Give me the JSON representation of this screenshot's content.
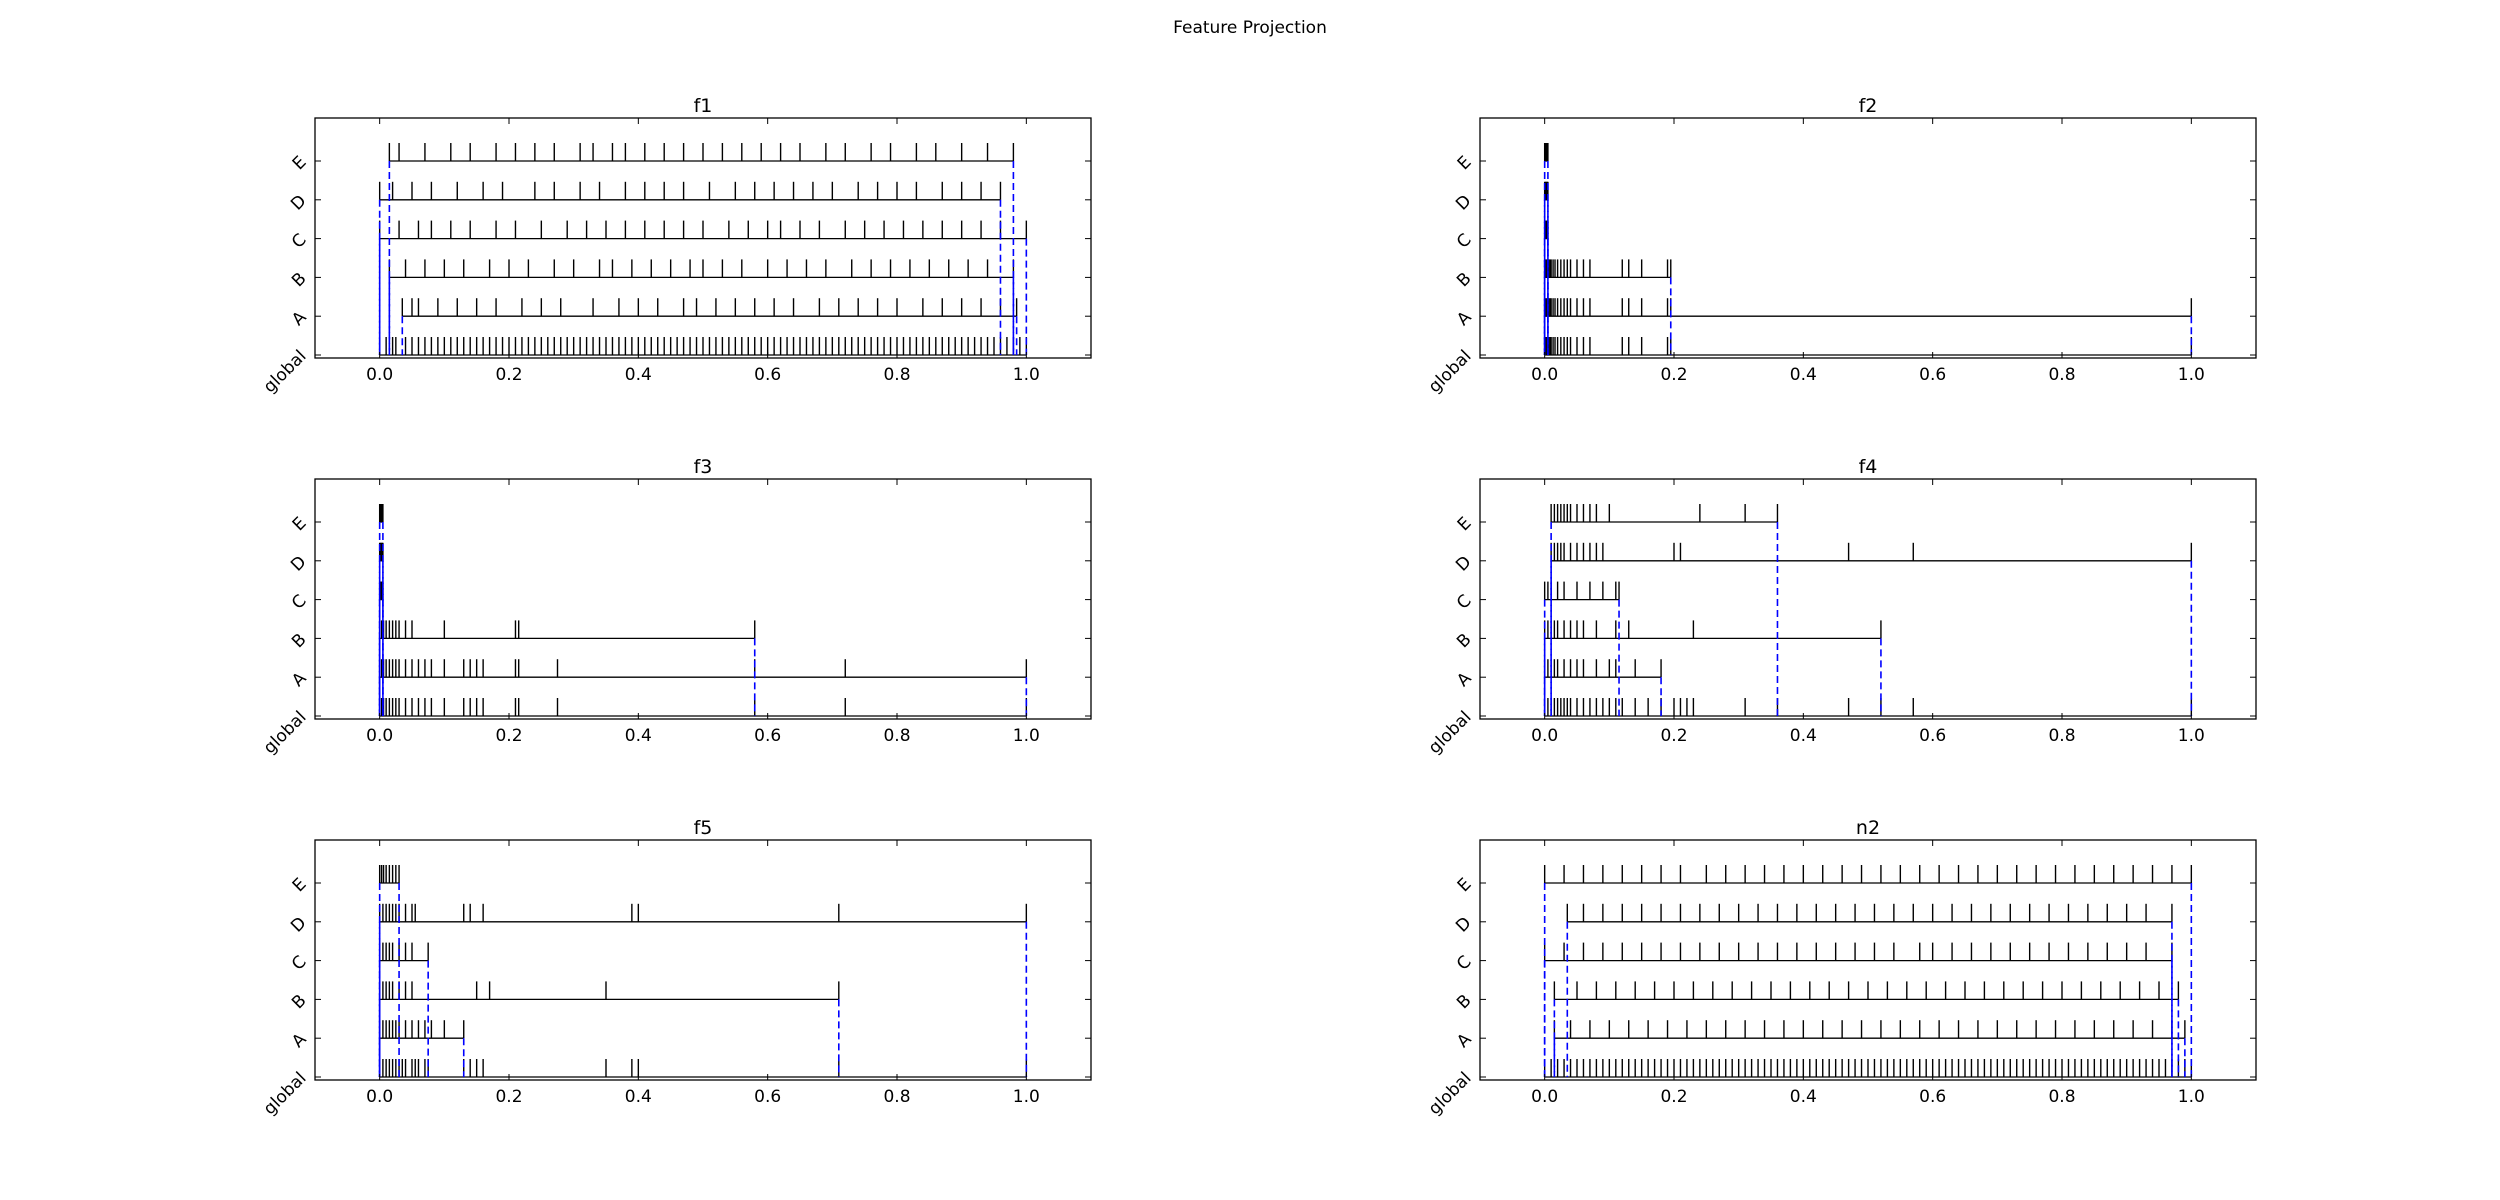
{
  "figure_title": "Feature Projection",
  "chart_data": [
    {
      "type": "event-strip",
      "title": "f1",
      "xlim": [
        -0.1,
        1.1
      ],
      "xticks": [
        "0.0",
        "0.2",
        "0.4",
        "0.6",
        "0.8",
        "1.0"
      ],
      "rows": [
        "global",
        "A",
        "B",
        "C",
        "D",
        "E"
      ],
      "grid": false,
      "ranges": {
        "global": [
          0.0,
          1.0
        ],
        "A": [
          0.035,
          0.985
        ],
        "B": [
          0.015,
          0.98
        ],
        "C": [
          0.0,
          1.0
        ],
        "D": [
          0.0,
          0.96
        ],
        "E": [
          0.015,
          0.98
        ]
      },
      "events": {
        "global": [
          0.0,
          0.01,
          0.02,
          0.025,
          0.04,
          0.05,
          0.06,
          0.07,
          0.08,
          0.09,
          0.1,
          0.11,
          0.12,
          0.13,
          0.14,
          0.15,
          0.16,
          0.17,
          0.18,
          0.19,
          0.2,
          0.21,
          0.22,
          0.23,
          0.24,
          0.25,
          0.26,
          0.27,
          0.28,
          0.29,
          0.3,
          0.31,
          0.32,
          0.33,
          0.34,
          0.35,
          0.36,
          0.37,
          0.38,
          0.39,
          0.4,
          0.41,
          0.42,
          0.43,
          0.44,
          0.45,
          0.46,
          0.47,
          0.48,
          0.49,
          0.5,
          0.51,
          0.52,
          0.53,
          0.54,
          0.55,
          0.56,
          0.57,
          0.58,
          0.59,
          0.6,
          0.61,
          0.62,
          0.63,
          0.64,
          0.65,
          0.66,
          0.67,
          0.68,
          0.69,
          0.7,
          0.71,
          0.72,
          0.73,
          0.74,
          0.75,
          0.76,
          0.77,
          0.78,
          0.79,
          0.8,
          0.81,
          0.82,
          0.83,
          0.84,
          0.85,
          0.86,
          0.87,
          0.88,
          0.89,
          0.9,
          0.91,
          0.92,
          0.93,
          0.94,
          0.95,
          0.96,
          0.97,
          0.98,
          0.99,
          1.0
        ],
        "A": [
          0.035,
          0.05,
          0.06,
          0.09,
          0.12,
          0.15,
          0.18,
          0.22,
          0.25,
          0.28,
          0.33,
          0.37,
          0.4,
          0.43,
          0.47,
          0.49,
          0.52,
          0.55,
          0.58,
          0.61,
          0.64,
          0.68,
          0.71,
          0.74,
          0.77,
          0.8,
          0.84,
          0.87,
          0.9,
          0.93,
          0.96,
          0.985
        ],
        "B": [
          0.015,
          0.04,
          0.07,
          0.1,
          0.13,
          0.17,
          0.2,
          0.23,
          0.27,
          0.3,
          0.34,
          0.36,
          0.39,
          0.42,
          0.45,
          0.48,
          0.5,
          0.53,
          0.56,
          0.6,
          0.63,
          0.66,
          0.69,
          0.73,
          0.76,
          0.79,
          0.82,
          0.85,
          0.88,
          0.91,
          0.94,
          0.98
        ],
        "C": [
          0.0,
          0.03,
          0.06,
          0.08,
          0.11,
          0.14,
          0.18,
          0.21,
          0.25,
          0.29,
          0.32,
          0.35,
          0.38,
          0.41,
          0.44,
          0.47,
          0.5,
          0.54,
          0.57,
          0.6,
          0.62,
          0.65,
          0.68,
          0.72,
          0.75,
          0.78,
          0.81,
          0.84,
          0.87,
          0.9,
          0.93,
          0.96,
          1.0
        ],
        "D": [
          0.0,
          0.02,
          0.05,
          0.08,
          0.12,
          0.16,
          0.19,
          0.24,
          0.27,
          0.31,
          0.34,
          0.38,
          0.41,
          0.44,
          0.47,
          0.51,
          0.55,
          0.58,
          0.61,
          0.64,
          0.67,
          0.7,
          0.74,
          0.77,
          0.8,
          0.83,
          0.87,
          0.9,
          0.93,
          0.96
        ],
        "E": [
          0.015,
          0.03,
          0.07,
          0.11,
          0.14,
          0.18,
          0.21,
          0.24,
          0.27,
          0.31,
          0.33,
          0.36,
          0.38,
          0.41,
          0.44,
          0.47,
          0.5,
          0.53,
          0.56,
          0.59,
          0.62,
          0.65,
          0.69,
          0.72,
          0.76,
          0.79,
          0.83,
          0.86,
          0.9,
          0.94,
          0.98
        ]
      }
    },
    {
      "type": "event-strip",
      "title": "f2",
      "xlim": [
        -0.1,
        1.1
      ],
      "xticks": [
        "0.0",
        "0.2",
        "0.4",
        "0.6",
        "0.8",
        "1.0"
      ],
      "rows": [
        "global",
        "A",
        "B",
        "C",
        "D",
        "E"
      ],
      "grid": false,
      "ranges": {
        "global": [
          0.0,
          1.0
        ],
        "A": [
          0.0,
          1.0
        ],
        "B": [
          0.0,
          0.195
        ],
        "C": [
          0.0,
          0.005
        ],
        "D": [
          0.0,
          0.005
        ],
        "E": [
          0.0,
          0.005
        ]
      },
      "events": {
        "global": [
          0.0,
          0.002,
          0.004,
          0.006,
          0.008,
          0.01,
          0.013,
          0.016,
          0.02,
          0.025,
          0.03,
          0.035,
          0.04,
          0.05,
          0.06,
          0.07,
          0.12,
          0.13,
          0.15,
          0.19,
          0.195,
          1.0
        ],
        "A": [
          0.0,
          0.002,
          0.004,
          0.006,
          0.008,
          0.01,
          0.013,
          0.016,
          0.02,
          0.025,
          0.03,
          0.035,
          0.04,
          0.05,
          0.06,
          0.07,
          0.12,
          0.13,
          0.15,
          0.19,
          0.195,
          1.0
        ],
        "B": [
          0.0,
          0.002,
          0.004,
          0.006,
          0.008,
          0.01,
          0.013,
          0.016,
          0.02,
          0.025,
          0.03,
          0.035,
          0.04,
          0.05,
          0.06,
          0.07,
          0.12,
          0.13,
          0.15,
          0.19,
          0.195
        ],
        "C": [
          0.0,
          0.001,
          0.002,
          0.003,
          0.004,
          0.005
        ],
        "D": [
          0.0,
          0.001,
          0.002,
          0.003,
          0.004,
          0.005
        ],
        "E": [
          0.0,
          0.001,
          0.002,
          0.003,
          0.004,
          0.005
        ]
      }
    },
    {
      "type": "event-strip",
      "title": "f3",
      "xlim": [
        -0.1,
        1.1
      ],
      "xticks": [
        "0.0",
        "0.2",
        "0.4",
        "0.6",
        "0.8",
        "1.0"
      ],
      "rows": [
        "global",
        "A",
        "B",
        "C",
        "D",
        "E"
      ],
      "grid": false,
      "ranges": {
        "global": [
          0.0,
          1.0
        ],
        "A": [
          0.0,
          1.0
        ],
        "B": [
          0.0,
          0.58
        ],
        "C": [
          0.0,
          0.005
        ],
        "D": [
          0.0,
          0.005
        ],
        "E": [
          0.0,
          0.005
        ]
      },
      "events": {
        "global": [
          0.0,
          0.003,
          0.006,
          0.01,
          0.015,
          0.02,
          0.025,
          0.03,
          0.04,
          0.05,
          0.06,
          0.07,
          0.08,
          0.1,
          0.13,
          0.14,
          0.15,
          0.16,
          0.21,
          0.215,
          0.275,
          0.58,
          0.72,
          1.0
        ],
        "A": [
          0.0,
          0.003,
          0.006,
          0.01,
          0.015,
          0.02,
          0.025,
          0.03,
          0.04,
          0.05,
          0.06,
          0.07,
          0.08,
          0.1,
          0.13,
          0.14,
          0.15,
          0.16,
          0.21,
          0.215,
          0.275,
          0.58,
          0.72,
          1.0
        ],
        "B": [
          0.0,
          0.003,
          0.006,
          0.01,
          0.015,
          0.02,
          0.025,
          0.03,
          0.04,
          0.05,
          0.1,
          0.21,
          0.215,
          0.58
        ],
        "C": [
          0.0,
          0.001,
          0.002,
          0.003,
          0.004,
          0.005
        ],
        "D": [
          0.0,
          0.001,
          0.002,
          0.003,
          0.004,
          0.005
        ],
        "E": [
          0.0,
          0.001,
          0.002,
          0.003,
          0.004,
          0.005
        ]
      }
    },
    {
      "type": "event-strip",
      "title": "f4",
      "xlim": [
        -0.1,
        1.1
      ],
      "xticks": [
        "0.0",
        "0.2",
        "0.4",
        "0.6",
        "0.8",
        "1.0"
      ],
      "rows": [
        "global",
        "A",
        "B",
        "C",
        "D",
        "E"
      ],
      "grid": false,
      "ranges": {
        "global": [
          0.0,
          1.0
        ],
        "A": [
          0.0,
          0.18
        ],
        "B": [
          0.0,
          0.52
        ],
        "C": [
          0.0,
          0.115
        ],
        "D": [
          0.01,
          1.0
        ],
        "E": [
          0.01,
          0.36
        ]
      },
      "events": {
        "global": [
          0.0,
          0.005,
          0.01,
          0.015,
          0.02,
          0.025,
          0.03,
          0.035,
          0.04,
          0.05,
          0.06,
          0.07,
          0.08,
          0.09,
          0.1,
          0.11,
          0.12,
          0.14,
          0.16,
          0.18,
          0.2,
          0.21,
          0.22,
          0.23,
          0.31,
          0.36,
          0.47,
          0.52,
          0.57,
          1.0
        ],
        "A": [
          0.0,
          0.005,
          0.01,
          0.015,
          0.02,
          0.03,
          0.04,
          0.05,
          0.06,
          0.08,
          0.1,
          0.11,
          0.14,
          0.18
        ],
        "B": [
          0.0,
          0.005,
          0.01,
          0.015,
          0.02,
          0.03,
          0.04,
          0.05,
          0.06,
          0.08,
          0.11,
          0.13,
          0.23,
          0.52
        ],
        "C": [
          0.0,
          0.005,
          0.01,
          0.02,
          0.03,
          0.05,
          0.07,
          0.09,
          0.11,
          0.115
        ],
        "D": [
          0.01,
          0.015,
          0.02,
          0.025,
          0.03,
          0.04,
          0.05,
          0.06,
          0.07,
          0.08,
          0.09,
          0.2,
          0.21,
          0.47,
          0.57,
          1.0
        ],
        "E": [
          0.01,
          0.015,
          0.02,
          0.025,
          0.03,
          0.035,
          0.04,
          0.05,
          0.06,
          0.07,
          0.08,
          0.1,
          0.24,
          0.31,
          0.36
        ]
      }
    },
    {
      "type": "event-strip",
      "title": "f5",
      "xlim": [
        -0.1,
        1.1
      ],
      "xticks": [
        "0.0",
        "0.2",
        "0.4",
        "0.6",
        "0.8",
        "1.0"
      ],
      "rows": [
        "global",
        "A",
        "B",
        "C",
        "D",
        "E"
      ],
      "grid": false,
      "ranges": {
        "global": [
          0.0,
          1.0
        ],
        "A": [
          0.0,
          0.13
        ],
        "B": [
          0.0,
          0.71
        ],
        "C": [
          0.0,
          0.075
        ],
        "D": [
          0.0,
          1.0
        ],
        "E": [
          0.0,
          0.03
        ]
      },
      "events": {
        "global": [
          0.0,
          0.005,
          0.01,
          0.015,
          0.02,
          0.025,
          0.03,
          0.035,
          0.04,
          0.05,
          0.055,
          0.06,
          0.07,
          0.075,
          0.13,
          0.14,
          0.15,
          0.16,
          0.35,
          0.39,
          0.4,
          0.71,
          1.0
        ],
        "A": [
          0.0,
          0.005,
          0.01,
          0.015,
          0.02,
          0.025,
          0.03,
          0.04,
          0.05,
          0.06,
          0.07,
          0.08,
          0.1,
          0.13
        ],
        "B": [
          0.0,
          0.005,
          0.01,
          0.015,
          0.02,
          0.03,
          0.04,
          0.05,
          0.15,
          0.17,
          0.35,
          0.71
        ],
        "C": [
          0.0,
          0.005,
          0.01,
          0.015,
          0.02,
          0.03,
          0.04,
          0.05,
          0.075
        ],
        "D": [
          0.0,
          0.005,
          0.01,
          0.015,
          0.02,
          0.025,
          0.03,
          0.04,
          0.05,
          0.055,
          0.13,
          0.14,
          0.16,
          0.39,
          0.4,
          0.71,
          1.0
        ],
        "E": [
          0.0,
          0.003,
          0.006,
          0.01,
          0.015,
          0.02,
          0.025,
          0.03
        ]
      }
    },
    {
      "type": "event-strip",
      "title": "n2",
      "xlim": [
        -0.1,
        1.1
      ],
      "xticks": [
        "0.0",
        "0.2",
        "0.4",
        "0.6",
        "0.8",
        "1.0"
      ],
      "rows": [
        "global",
        "A",
        "B",
        "C",
        "D",
        "E"
      ],
      "grid": false,
      "ranges": {
        "global": [
          0.0,
          1.0
        ],
        "A": [
          0.015,
          0.99
        ],
        "B": [
          0.015,
          0.98
        ],
        "C": [
          0.0,
          0.97
        ],
        "D": [
          0.035,
          0.97
        ],
        "E": [
          0.0,
          1.0
        ]
      },
      "events": {
        "global": [
          0.0,
          0.01,
          0.02,
          0.03,
          0.04,
          0.05,
          0.06,
          0.07,
          0.08,
          0.09,
          0.1,
          0.11,
          0.12,
          0.13,
          0.14,
          0.15,
          0.16,
          0.17,
          0.18,
          0.19,
          0.2,
          0.21,
          0.22,
          0.23,
          0.24,
          0.25,
          0.26,
          0.27,
          0.28,
          0.29,
          0.3,
          0.31,
          0.32,
          0.33,
          0.34,
          0.35,
          0.36,
          0.37,
          0.38,
          0.39,
          0.4,
          0.41,
          0.42,
          0.43,
          0.44,
          0.45,
          0.46,
          0.47,
          0.48,
          0.49,
          0.5,
          0.51,
          0.52,
          0.53,
          0.54,
          0.55,
          0.56,
          0.57,
          0.58,
          0.59,
          0.6,
          0.61,
          0.62,
          0.63,
          0.64,
          0.65,
          0.66,
          0.67,
          0.68,
          0.69,
          0.7,
          0.71,
          0.72,
          0.73,
          0.74,
          0.75,
          0.76,
          0.77,
          0.78,
          0.79,
          0.8,
          0.81,
          0.82,
          0.83,
          0.84,
          0.85,
          0.86,
          0.87,
          0.88,
          0.89,
          0.9,
          0.91,
          0.92,
          0.93,
          0.94,
          0.95,
          0.96,
          0.97,
          0.98,
          0.99,
          1.0
        ],
        "A": [
          0.015,
          0.04,
          0.07,
          0.1,
          0.13,
          0.16,
          0.19,
          0.22,
          0.25,
          0.28,
          0.31,
          0.34,
          0.37,
          0.4,
          0.43,
          0.46,
          0.49,
          0.52,
          0.55,
          0.58,
          0.61,
          0.64,
          0.67,
          0.7,
          0.73,
          0.76,
          0.79,
          0.82,
          0.85,
          0.88,
          0.91,
          0.94,
          0.97,
          0.99
        ],
        "B": [
          0.015,
          0.05,
          0.08,
          0.11,
          0.14,
          0.17,
          0.2,
          0.23,
          0.26,
          0.29,
          0.32,
          0.35,
          0.38,
          0.41,
          0.44,
          0.47,
          0.5,
          0.53,
          0.56,
          0.59,
          0.62,
          0.65,
          0.68,
          0.71,
          0.74,
          0.77,
          0.8,
          0.83,
          0.86,
          0.89,
          0.92,
          0.95,
          0.98
        ],
        "C": [
          0.0,
          0.03,
          0.06,
          0.09,
          0.12,
          0.15,
          0.18,
          0.21,
          0.24,
          0.27,
          0.3,
          0.33,
          0.36,
          0.39,
          0.42,
          0.45,
          0.48,
          0.51,
          0.54,
          0.58,
          0.6,
          0.63,
          0.66,
          0.69,
          0.72,
          0.75,
          0.78,
          0.81,
          0.84,
          0.87,
          0.9,
          0.93,
          0.97
        ],
        "D": [
          0.035,
          0.06,
          0.09,
          0.12,
          0.15,
          0.18,
          0.21,
          0.24,
          0.27,
          0.3,
          0.33,
          0.36,
          0.39,
          0.42,
          0.45,
          0.48,
          0.51,
          0.54,
          0.57,
          0.6,
          0.63,
          0.66,
          0.69,
          0.72,
          0.75,
          0.78,
          0.81,
          0.84,
          0.87,
          0.9,
          0.93,
          0.97
        ],
        "E": [
          0.0,
          0.03,
          0.06,
          0.09,
          0.12,
          0.15,
          0.18,
          0.21,
          0.25,
          0.28,
          0.31,
          0.34,
          0.37,
          0.4,
          0.43,
          0.46,
          0.49,
          0.52,
          0.55,
          0.58,
          0.61,
          0.64,
          0.67,
          0.7,
          0.73,
          0.76,
          0.79,
          0.82,
          0.85,
          0.88,
          0.91,
          0.94,
          0.97,
          1.0
        ]
      }
    }
  ],
  "colors": {
    "events": "#000000",
    "range_line": "#000000",
    "range_bound": "#0000ff",
    "axes": "#000000"
  }
}
